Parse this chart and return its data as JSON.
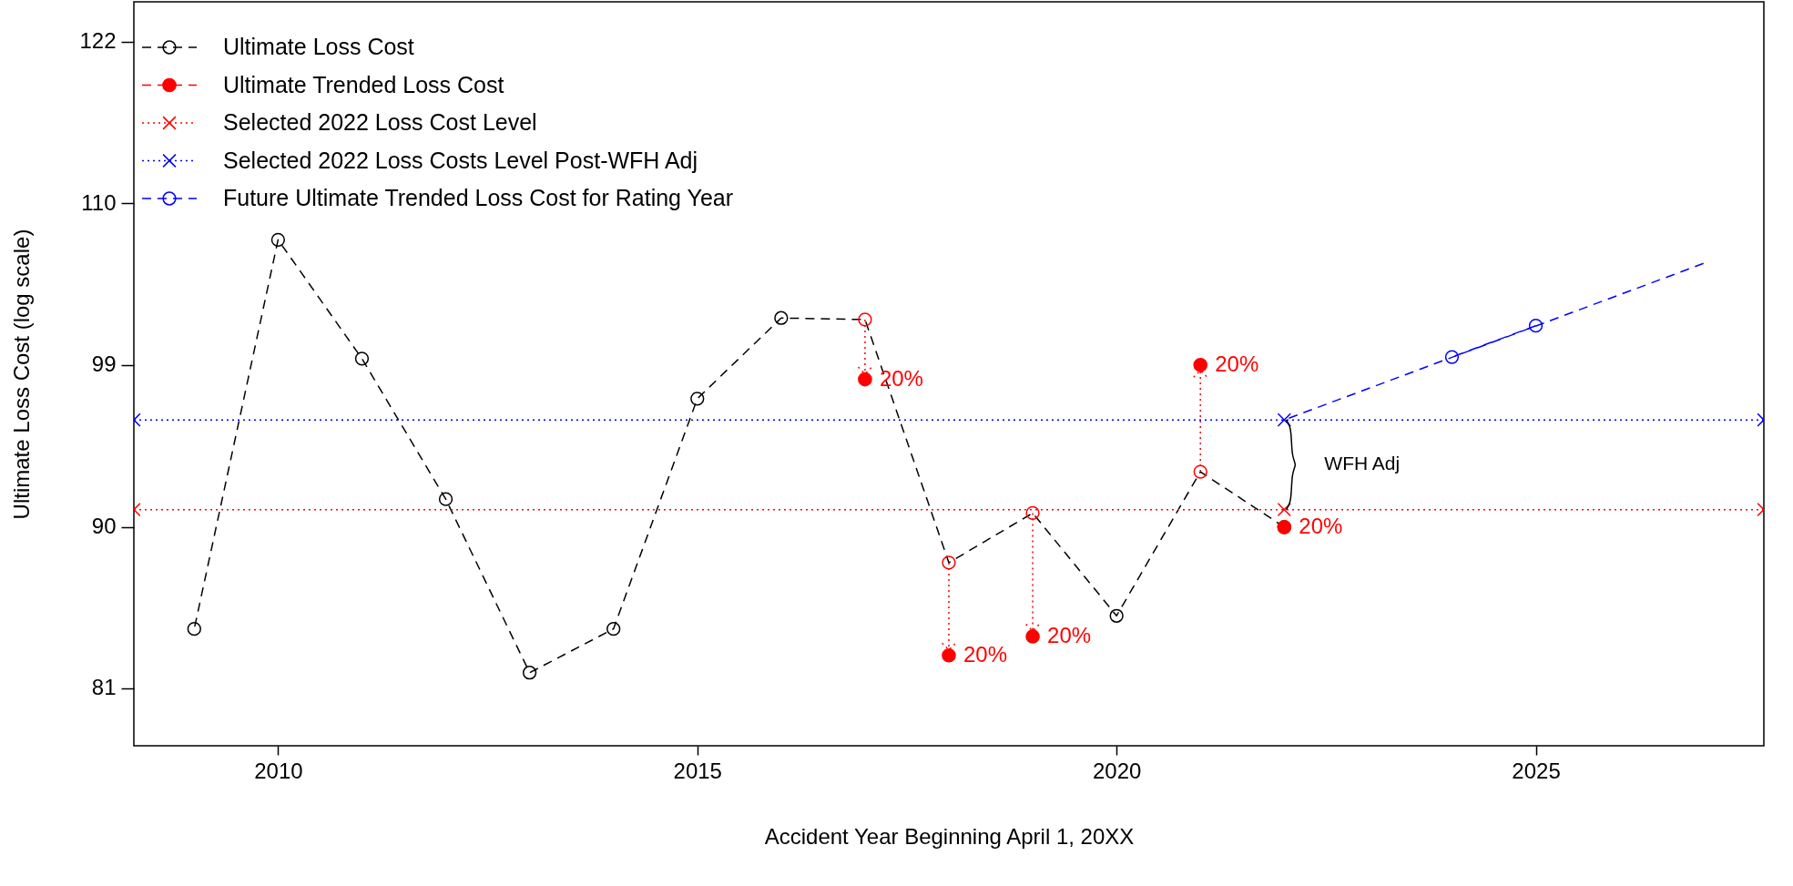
{
  "chart_data": {
    "type": "line",
    "xlabel": "Accident Year Beginning April 1, 20XX",
    "ylabel": "Ultimate Loss Cost (log scale)",
    "log": true,
    "xlim": [
      2008.28,
      2027.72
    ],
    "ylim": [
      78.1,
      125.1
    ],
    "xticks": [
      2010,
      2015,
      2020,
      2025
    ],
    "yticks": [
      {
        "value": 81,
        "label": "81"
      },
      {
        "value": 89.7,
        "label": "90"
      },
      {
        "value": 99.4,
        "label": "99"
      },
      {
        "value": 110.1,
        "label": "110"
      },
      {
        "value": 122,
        "label": "122"
      }
    ],
    "grid": false,
    "legend": "top left",
    "series": [
      {
        "name": "Ultimate Loss Cost",
        "color": "#000000",
        "colors": [
          "#000000",
          "#000000",
          "#000000",
          "#000000",
          "#000000",
          "#000000",
          "#000000",
          "#000000",
          "#ff0000",
          "#ff0000",
          "#ff0000",
          "#000000",
          "#ff0000",
          "#000000"
        ],
        "line_style": "dashed",
        "marker": "circle",
        "x": [
          2009,
          2010,
          2011,
          2012,
          2013,
          2014,
          2015,
          2016,
          2017,
          2018,
          2019,
          2020,
          2021,
          2022
        ],
        "values": [
          84.1,
          107.6,
          99.8,
          91.3,
          81.8,
          84.1,
          97.3,
          102.4,
          102.3,
          87.7,
          90.5,
          84.8,
          92.9,
          89.7
        ]
      },
      {
        "name": "Ultimate Trended Loss Cost",
        "type": "scatter",
        "color": "#ff0000",
        "line_style": "dashed",
        "marker": "circle",
        "x": [
          2017,
          2018,
          2019,
          2021,
          2022
        ],
        "values": [
          98.5,
          82.7,
          83.7,
          99.4,
          89.7
        ]
      },
      {
        "name": "Selected 2022 Loss Cost Level",
        "type": "line",
        "color": "#ff0000",
        "line_style": "dotted",
        "marker": "cross",
        "x": [
          2008.28,
          2022,
          2027.72
        ],
        "values": [
          90.7,
          90.7,
          90.7
        ]
      },
      {
        "name": "Selected 2022 Loss Costs Level Post-WFH Adj",
        "type": "line",
        "color": "#0000ff",
        "line_style": "dotted",
        "marker": "cross",
        "x": [
          2008.28,
          2022,
          2027.72
        ],
        "values": [
          96.0,
          96.0,
          96.0
        ]
      },
      {
        "name": "Future Ultimate Trended Loss Cost for Rating Year",
        "color": "#0000ff",
        "line_style": "dashed",
        "marker": "circle",
        "x": [
          2024,
          2025
        ],
        "values": [
          99.9,
          101.9
        ]
      },
      {
        "color": "#0000ff",
        "line_style": "dashed",
        "marker": "none",
        "x": [
          2022,
          2027
        ],
        "values": [
          96.0,
          106.0
        ]
      }
    ],
    "annotations": [
      {
        "text": "20%",
        "x": 2017,
        "y": 98.5
      },
      {
        "text": "20%",
        "x": 2018,
        "y": 82.7
      },
      {
        "text": "20%",
        "x": 2019,
        "y": 83.7
      },
      {
        "text": "20%",
        "x": 2021,
        "y": 99.4
      },
      {
        "text": "20%",
        "x": 2022,
        "y": 89.7
      },
      "WFH Adj"
    ]
  }
}
